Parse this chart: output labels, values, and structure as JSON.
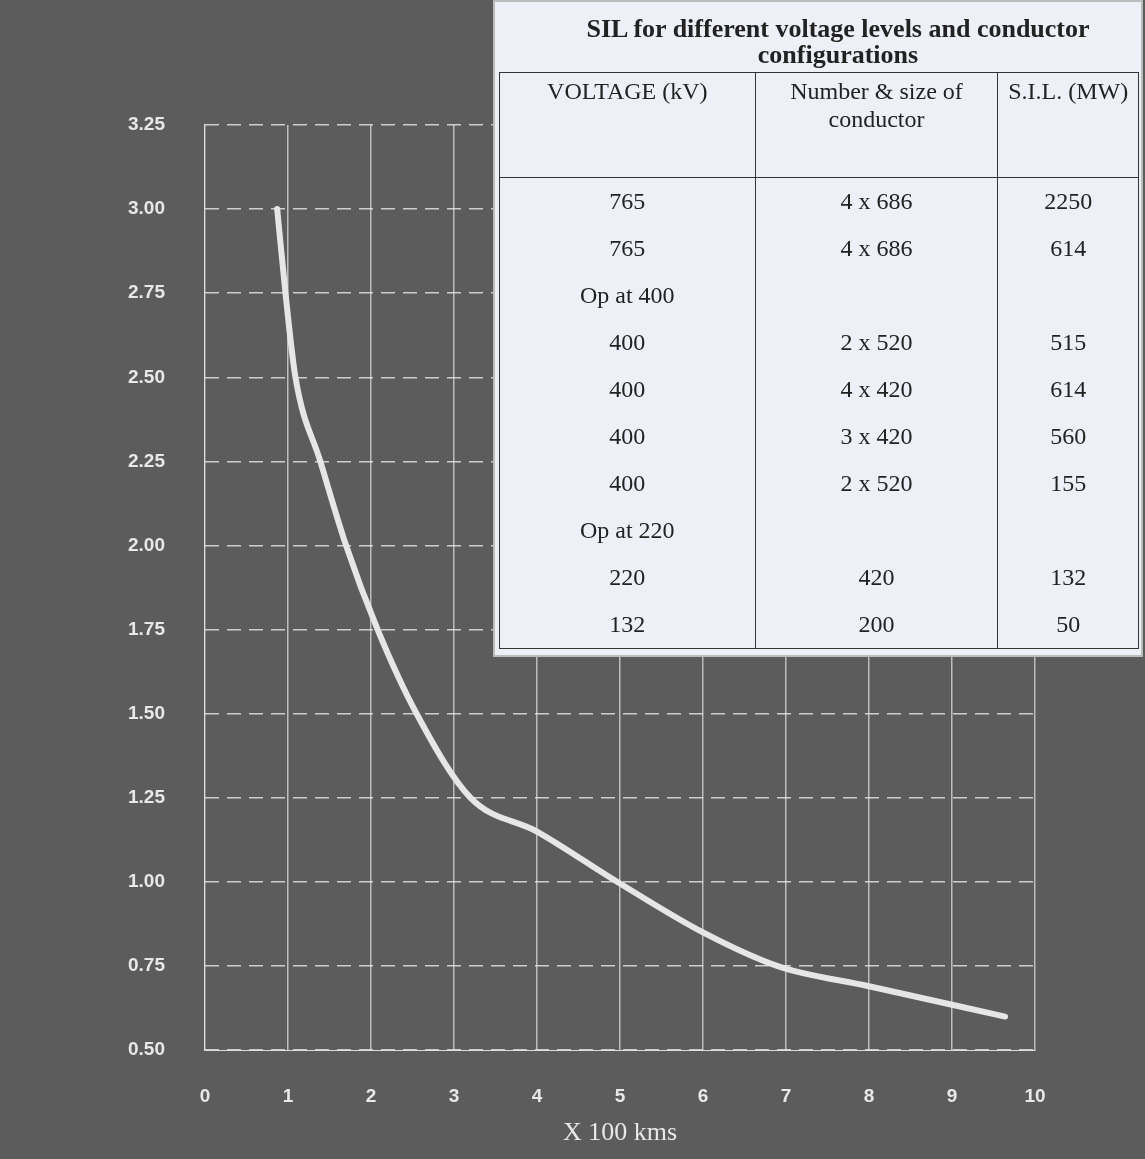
{
  "chart_data": [
    {
      "type": "line",
      "xlabel": "X 100 kms",
      "x": [
        0.87,
        0.97,
        1.09,
        1.39,
        1.7,
        2.08,
        2.55,
        3.2,
        4,
        4.97,
        6,
        6.9,
        8,
        9.64
      ],
      "series": [
        {
          "color": "#e6e6e6",
          "values": [
            3.0,
            2.75,
            2.5,
            2.25,
            2.0,
            1.75,
            1.5,
            1.25,
            1.15,
            1.0,
            0.85,
            0.75,
            0.69,
            0.6
          ]
        }
      ],
      "xlim": [
        0,
        10
      ],
      "xticks": [
        0,
        1,
        2,
        3,
        4,
        5,
        6,
        7,
        8,
        9,
        10
      ],
      "ylim": [
        0.5,
        3.25
      ],
      "yticks": [
        {
          "value": 0.5,
          "label": "0.50"
        },
        {
          "value": 0.75,
          "label": "0.75"
        },
        {
          "value": 1,
          "label": "1.00"
        },
        {
          "value": 1.25,
          "label": "1.25"
        },
        {
          "value": 1.5,
          "label": "1.50"
        },
        {
          "value": 1.75,
          "label": "1.75"
        },
        {
          "value": 2,
          "label": "2.00"
        },
        {
          "value": 2.25,
          "label": "2.25"
        },
        {
          "value": 2.5,
          "label": "2.50"
        },
        {
          "value": 2.75,
          "label": "2.75"
        },
        {
          "value": 3,
          "label": "3.00"
        },
        {
          "value": 3.25,
          "label": "3.25"
        }
      ],
      "grid": true,
      "legend": false,
      "marker": "none",
      "line_style": "solid"
    },
    {
      "type": "other",
      "title": "SIL for different voltage levels and conductor configurations",
      "categories": [
        "VOLTAGE (kV)",
        "Number & size of conductor",
        "S.I.L. (MW)"
      ],
      "cell_labels": [
        [
          "765",
          "4 x 686",
          "2250"
        ],
        [
          "765",
          "4 x 686",
          "614"
        ],
        [
          "Op at 400",
          null,
          null
        ],
        [
          "400",
          "2 x 520",
          "515"
        ],
        [
          "400",
          "4 x 420",
          "614"
        ],
        [
          "400",
          "3 x 420",
          "560"
        ],
        [
          "400",
          "2 x 520",
          "155"
        ],
        [
          "Op at 220",
          null,
          null
        ],
        [
          "220",
          "420",
          "132"
        ],
        [
          "132",
          "200",
          "50"
        ]
      ]
    }
  ]
}
